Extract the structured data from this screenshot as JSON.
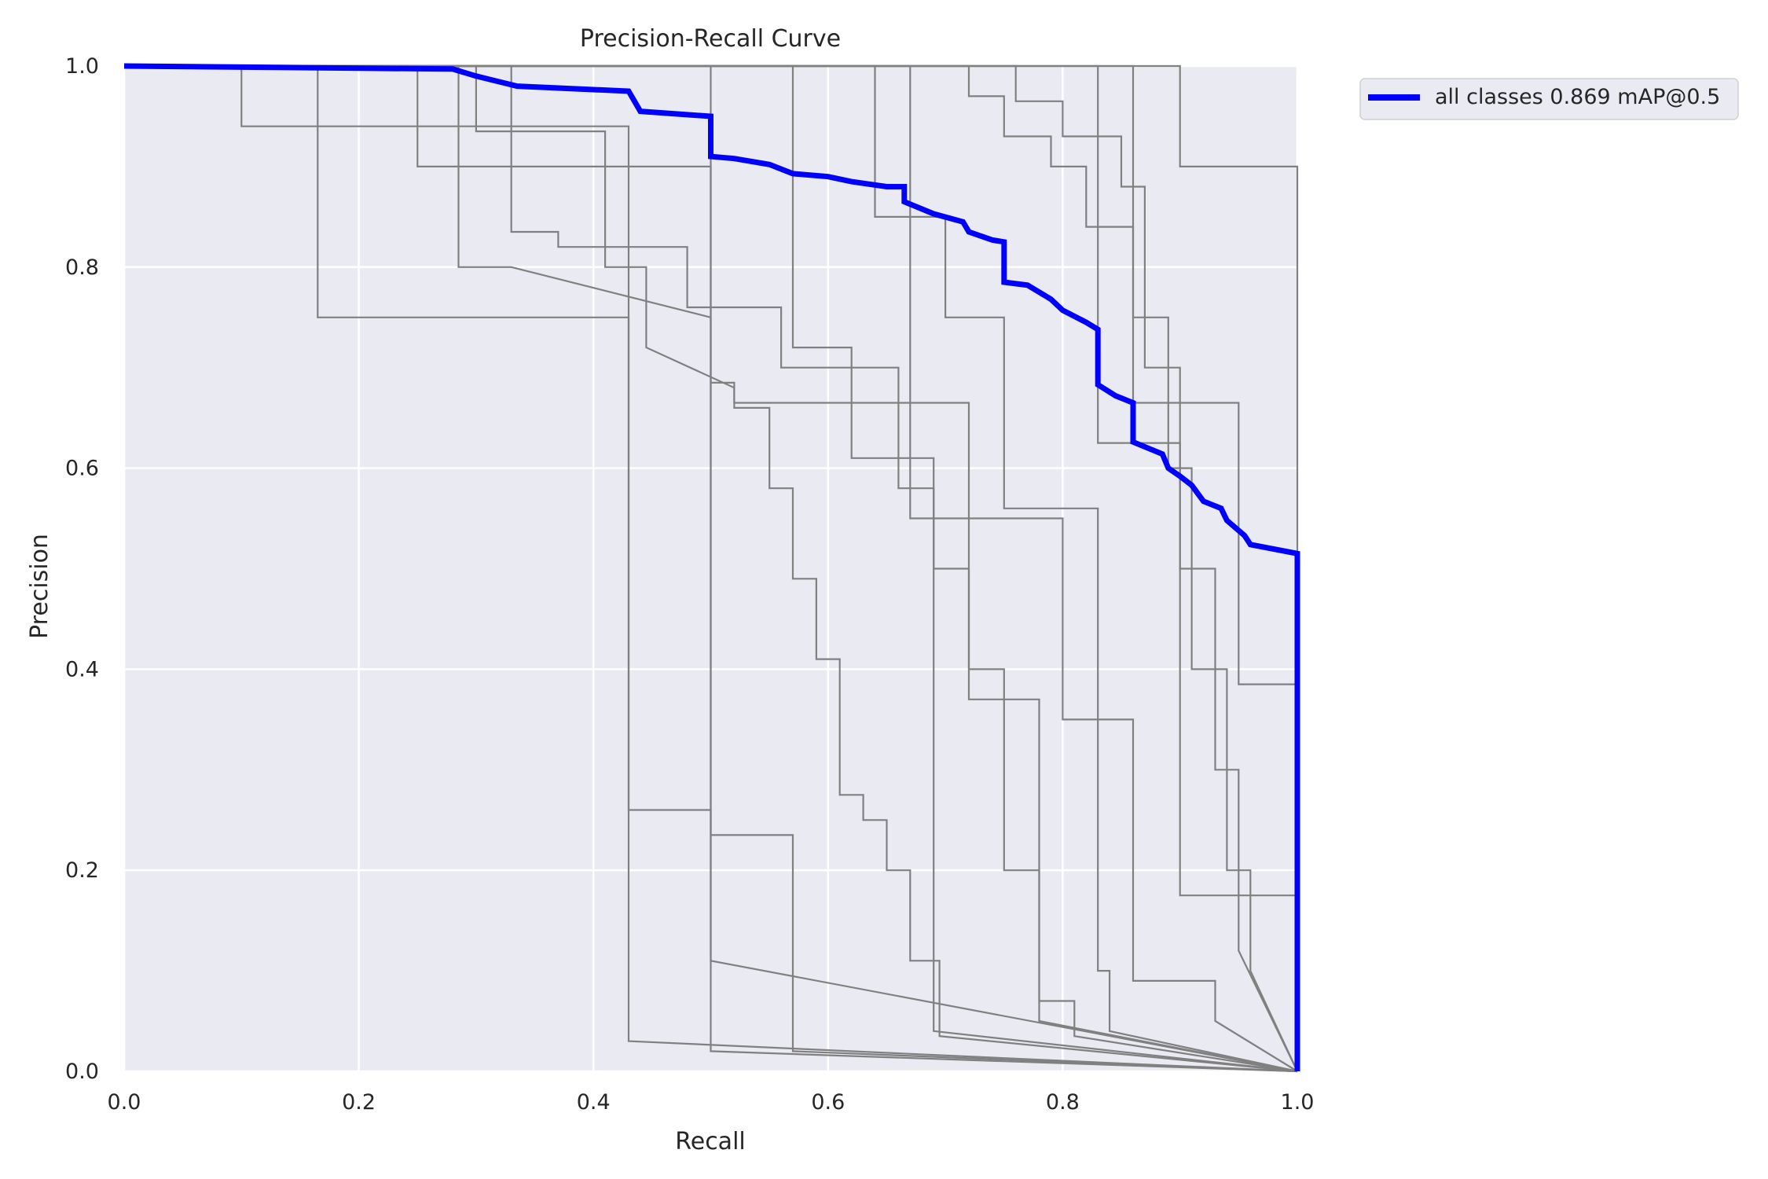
{
  "chart_data": {
    "type": "line",
    "title": "Precision-Recall Curve",
    "xlabel": "Recall",
    "ylabel": "Precision",
    "xlim": [
      0,
      1
    ],
    "ylim": [
      0,
      1
    ],
    "xticks": [
      "0.0",
      "0.2",
      "0.4",
      "0.6",
      "0.8",
      "1.0"
    ],
    "yticks": [
      "0.0",
      "0.2",
      "0.4",
      "0.6",
      "0.8",
      "1.0"
    ],
    "grid": true,
    "background": "#eaeaf2",
    "legend_position": "upper-right-outside",
    "legend": [
      "all classes 0.869 mAP@0.5"
    ],
    "series": [
      {
        "name": "all classes 0.869 mAP@0.5",
        "color": "#0000ff",
        "x": [
          0,
          0.28,
          0.3,
          0.335,
          0.43,
          0.44,
          0.5,
          0.5,
          0.52,
          0.55,
          0.57,
          0.6,
          0.62,
          0.65,
          0.665,
          0.665,
          0.69,
          0.715,
          0.72,
          0.74,
          0.75,
          0.75,
          0.77,
          0.79,
          0.8,
          0.82,
          0.83,
          0.83,
          0.845,
          0.86,
          0.86,
          0.885,
          0.89,
          0.9,
          0.91,
          0.92,
          0.935,
          0.94,
          0.955,
          0.96,
          1.0,
          1.0
        ],
        "y": [
          1.0,
          0.997,
          0.99,
          0.98,
          0.975,
          0.955,
          0.95,
          0.91,
          0.908,
          0.902,
          0.893,
          0.89,
          0.885,
          0.88,
          0.88,
          0.865,
          0.853,
          0.845,
          0.835,
          0.827,
          0.825,
          0.785,
          0.782,
          0.768,
          0.757,
          0.745,
          0.738,
          0.683,
          0.672,
          0.665,
          0.626,
          0.614,
          0.6,
          0.592,
          0.583,
          0.567,
          0.56,
          0.548,
          0.533,
          0.524,
          0.515,
          0.0
        ]
      },
      {
        "color": "#808080",
        "x": [
          0,
          0.1,
          0.1,
          0.42,
          0.43,
          0.43,
          1.0
        ],
        "y": [
          1.0,
          1.0,
          0.94,
          0.94,
          0.94,
          0.03,
          0.0
        ]
      },
      {
        "color": "#808080",
        "x": [
          0,
          0.165,
          0.165,
          0.43,
          0.43,
          0.5,
          0.5,
          1.0
        ],
        "y": [
          1.0,
          1.0,
          0.75,
          0.75,
          0.26,
          0.26,
          0.02,
          0.0
        ]
      },
      {
        "color": "#808080",
        "x": [
          0,
          0.25,
          0.25,
          0.43,
          0.43,
          0.5,
          0.5,
          0.57,
          0.57,
          1.0
        ],
        "y": [
          1.0,
          1.0,
          0.9,
          0.9,
          0.9,
          0.9,
          0.235,
          0.235,
          0.02,
          0.0
        ]
      },
      {
        "color": "#808080",
        "x": [
          0,
          0.285,
          0.285,
          0.33,
          0.33,
          0.5,
          0.5,
          1.0
        ],
        "y": [
          1.0,
          1.0,
          0.8,
          0.8,
          0.8,
          0.75,
          0.11,
          0.0
        ]
      },
      {
        "color": "#808080",
        "x": [
          0,
          0.3,
          0.3,
          0.41,
          0.41,
          0.445,
          0.445,
          0.52,
          0.52,
          0.55,
          0.55,
          0.57,
          0.57,
          0.59,
          0.59,
          0.61,
          0.61,
          0.63,
          0.63,
          0.65,
          0.65,
          0.67,
          0.67,
          0.695,
          0.695,
          1.0
        ],
        "y": [
          1.0,
          1.0,
          0.935,
          0.935,
          0.8,
          0.8,
          0.72,
          0.68,
          0.66,
          0.66,
          0.58,
          0.58,
          0.49,
          0.49,
          0.41,
          0.41,
          0.275,
          0.275,
          0.25,
          0.25,
          0.2,
          0.2,
          0.11,
          0.11,
          0.035,
          0.0
        ]
      },
      {
        "color": "#808080",
        "x": [
          0,
          0.33,
          0.33,
          0.37,
          0.37,
          0.48,
          0.48,
          0.56,
          0.56,
          0.66,
          0.66,
          0.69,
          0.69,
          1.0
        ],
        "y": [
          1.0,
          1.0,
          0.835,
          0.835,
          0.82,
          0.82,
          0.76,
          0.76,
          0.7,
          0.7,
          0.58,
          0.58,
          0.04,
          0.0
        ]
      },
      {
        "color": "#808080",
        "x": [
          0,
          0.5,
          0.5,
          0.52,
          0.52,
          0.72,
          0.72,
          0.75,
          0.75,
          0.78,
          0.78,
          1.0
        ],
        "y": [
          1.0,
          1.0,
          0.685,
          0.685,
          0.665,
          0.665,
          0.4,
          0.4,
          0.2,
          0.2,
          0.05,
          0.0
        ]
      },
      {
        "color": "#808080",
        "x": [
          0,
          0.57,
          0.57,
          0.62,
          0.62,
          0.69,
          0.69,
          0.72,
          0.72,
          0.78,
          0.78,
          0.81,
          0.81,
          1.0
        ],
        "y": [
          1.0,
          1.0,
          0.72,
          0.72,
          0.61,
          0.61,
          0.5,
          0.5,
          0.37,
          0.37,
          0.07,
          0.07,
          0.035,
          0.0
        ]
      },
      {
        "color": "#808080",
        "x": [
          0,
          0.64,
          0.64,
          0.7,
          0.7,
          0.75,
          0.75,
          0.83,
          0.83,
          0.84,
          0.84,
          1.0
        ],
        "y": [
          1.0,
          1.0,
          0.85,
          0.85,
          0.75,
          0.75,
          0.56,
          0.56,
          0.1,
          0.1,
          0.04,
          0.0
        ]
      },
      {
        "color": "#808080",
        "x": [
          0,
          0.67,
          0.67,
          0.8,
          0.8,
          0.86,
          0.86,
          0.93,
          0.93,
          1.0
        ],
        "y": [
          1.0,
          1.0,
          0.55,
          0.55,
          0.35,
          0.35,
          0.09,
          0.09,
          0.05,
          0.0
        ]
      },
      {
        "color": "#808080",
        "x": [
          0,
          0.72,
          0.72,
          0.75,
          0.75,
          0.79,
          0.79,
          0.82,
          0.82,
          0.86,
          0.86,
          0.89,
          0.89,
          0.91,
          0.91,
          0.94,
          0.94,
          0.96,
          0.96,
          1.0
        ],
        "y": [
          1.0,
          1.0,
          0.97,
          0.97,
          0.93,
          0.93,
          0.9,
          0.9,
          0.84,
          0.84,
          0.75,
          0.75,
          0.6,
          0.6,
          0.4,
          0.4,
          0.2,
          0.2,
          0.1,
          0.0
        ]
      },
      {
        "color": "#808080",
        "x": [
          0,
          0.76,
          0.76,
          0.8,
          0.8,
          0.85,
          0.85,
          0.87,
          0.87,
          0.9,
          0.9,
          0.93,
          0.93,
          0.95,
          0.95,
          1.0
        ],
        "y": [
          1.0,
          1.0,
          0.965,
          0.965,
          0.93,
          0.93,
          0.88,
          0.88,
          0.7,
          0.7,
          0.5,
          0.5,
          0.3,
          0.3,
          0.12,
          0.0
        ]
      },
      {
        "color": "#808080",
        "x": [
          0,
          0.9,
          0.9,
          1.0,
          1.0
        ],
        "y": [
          1.0,
          1.0,
          0.9,
          0.9,
          0.0
        ]
      },
      {
        "color": "#808080",
        "x": [
          0,
          0.86,
          0.86,
          0.95,
          0.95,
          1.0,
          1.0
        ],
        "y": [
          1.0,
          1.0,
          0.665,
          0.665,
          0.385,
          0.385,
          0.0
        ]
      },
      {
        "color": "#808080",
        "x": [
          0,
          0.83,
          0.83,
          0.9,
          0.9,
          1.0,
          1.0
        ],
        "y": [
          1.0,
          1.0,
          0.625,
          0.625,
          0.175,
          0.175,
          0.0
        ]
      }
    ]
  }
}
